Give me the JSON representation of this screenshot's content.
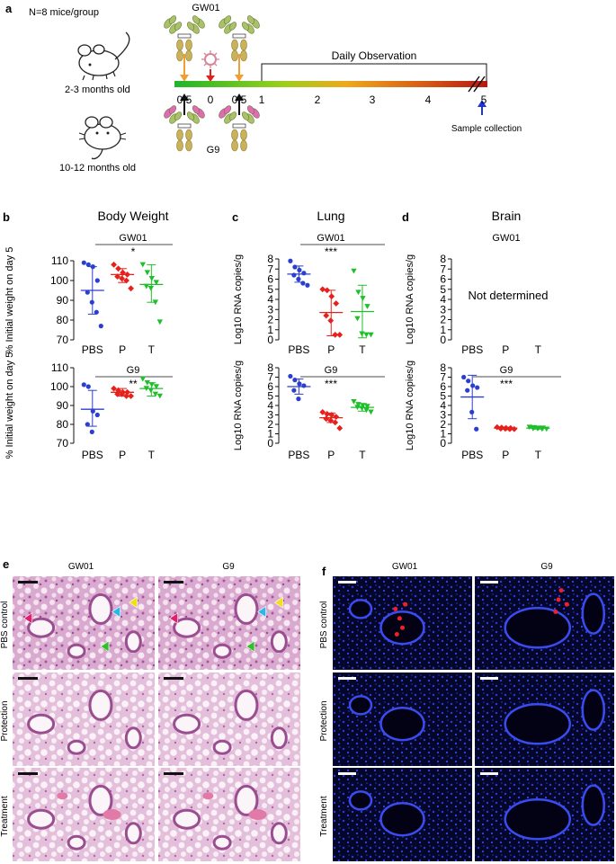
{
  "panel_a": {
    "letter": "a",
    "n_label": "N=8 mice/group",
    "young_age": "2-3 months old",
    "old_age": "10-12 months old",
    "top_antibody": "GW01",
    "bottom_antibody": "G9",
    "observation_label": "Daily Observation",
    "sample_label": "Sample collection",
    "timeline_ticks": [
      "0.5",
      "0",
      "0.5",
      "1",
      "2",
      "3",
      "4",
      "5"
    ]
  },
  "groups": [
    "PBS",
    "P",
    "T"
  ],
  "colors": {
    "pbs": "#2a3fd0",
    "p": "#e8201c",
    "t": "#1fbf2a"
  },
  "chart_data": [
    {
      "id": "b-top",
      "type": "scatter",
      "letter": "b",
      "title": "Body Weight",
      "subtitle": "GW01",
      "sig": "*",
      "ylabel": "% Initial weight on day 5",
      "ylim": [
        70,
        110
      ],
      "yticks": [
        70,
        80,
        90,
        100,
        110
      ],
      "categories": [
        "PBS",
        "P",
        "T"
      ],
      "series": [
        {
          "values": [
            109,
            108,
            107,
            100,
            94,
            89,
            84,
            77
          ],
          "mean": 95,
          "sd": [
            83,
            107
          ]
        },
        {
          "values": [
            108,
            106,
            104,
            103,
            102,
            101,
            100,
            96
          ],
          "mean": 103,
          "sd": [
            99,
            106
          ]
        },
        {
          "values": [
            108,
            104,
            101,
            99,
            97,
            96,
            89,
            79
          ],
          "mean": 98,
          "sd": [
            89,
            108
          ]
        }
      ]
    },
    {
      "id": "b-bottom",
      "type": "scatter",
      "letter": "",
      "title": "",
      "subtitle": "G9",
      "sig": "**",
      "ylabel": "% Initial weight on day 5",
      "ylim": [
        70,
        110
      ],
      "yticks": [
        70,
        80,
        90,
        100,
        110
      ],
      "categories": [
        "PBS",
        "P",
        "T"
      ],
      "series": [
        {
          "values": [
            101,
            100,
            87,
            85,
            80,
            76
          ],
          "mean": 88,
          "sd": [
            79,
            98
          ]
        },
        {
          "values": [
            99,
            98,
            97,
            97,
            96,
            96,
            95,
            95
          ],
          "mean": 97,
          "sd": [
            95,
            99
          ]
        },
        {
          "values": [
            104,
            102,
            101,
            100,
            99,
            98,
            96,
            95
          ],
          "mean": 99,
          "sd": [
            95,
            102
          ]
        }
      ]
    },
    {
      "id": "c-top",
      "type": "scatter",
      "letter": "c",
      "title": "Lung",
      "subtitle": "GW01",
      "sig": "***",
      "ylabel": "Log10 RNA copies/g",
      "ylim": [
        0,
        8
      ],
      "yticks": [
        0,
        1,
        2,
        3,
        4,
        5,
        6,
        7,
        8
      ],
      "categories": [
        "PBS",
        "P",
        "T"
      ],
      "series": [
        {
          "values": [
            7.8,
            7.2,
            6.9,
            6.6,
            6.4,
            6.0,
            5.6,
            5.4
          ],
          "mean": 6.5,
          "sd": [
            5.7,
            7.3
          ]
        },
        {
          "values": [
            5.0,
            4.9,
            4.3,
            3.6,
            2.4,
            1.9,
            0.5,
            0.5
          ],
          "mean": 2.7,
          "sd": [
            0.4,
            4.9
          ]
        },
        {
          "values": [
            6.8,
            4.7,
            4.1,
            3.3,
            2.1,
            0.6,
            0.5,
            0.5
          ],
          "mean": 2.8,
          "sd": [
            0.2,
            5.4
          ]
        }
      ]
    },
    {
      "id": "c-bottom",
      "type": "scatter",
      "letter": "",
      "title": "",
      "subtitle": "G9",
      "sig": "***",
      "ylabel": "Log10 RNA copies/g",
      "ylim": [
        0,
        8
      ],
      "yticks": [
        0,
        1,
        2,
        3,
        4,
        5,
        6,
        7,
        8
      ],
      "categories": [
        "PBS",
        "P",
        "T"
      ],
      "series": [
        {
          "values": [
            7.1,
            6.7,
            6.3,
            6.1,
            5.6,
            4.7
          ],
          "mean": 6.0,
          "sd": [
            5.2,
            6.8
          ]
        },
        {
          "values": [
            3.3,
            3.1,
            3.0,
            2.8,
            2.6,
            2.4,
            2.2,
            1.6
          ],
          "mean": 2.7,
          "sd": [
            2.2,
            3.2
          ]
        },
        {
          "values": [
            4.4,
            4.1,
            4.0,
            3.9,
            3.8,
            3.7,
            3.5,
            3.3
          ],
          "mean": 3.8,
          "sd": [
            3.4,
            4.2
          ]
        }
      ]
    },
    {
      "id": "d-top",
      "type": "scatter",
      "letter": "d",
      "title": "Brain",
      "subtitle": "GW01",
      "sig": "",
      "ylabel": "Log10 RNA copies/g",
      "ylim": [
        0,
        8
      ],
      "yticks": [
        0,
        1,
        2,
        3,
        4,
        5,
        6,
        7,
        8
      ],
      "categories": [
        "PBS",
        "P",
        "T"
      ],
      "note": "Not determined",
      "series": []
    },
    {
      "id": "d-bottom",
      "type": "scatter",
      "letter": "",
      "title": "",
      "subtitle": "G9",
      "sig": "***",
      "ylabel": "Log10 RNA copies/g",
      "ylim": [
        0,
        8
      ],
      "yticks": [
        0,
        1,
        2,
        3,
        4,
        5,
        6,
        7,
        8
      ],
      "categories": [
        "PBS",
        "P",
        "T"
      ],
      "series": [
        {
          "values": [
            7.0,
            6.6,
            6.1,
            5.9,
            5.6,
            3.3,
            1.5
          ],
          "mean": 4.9,
          "sd": [
            2.6,
            7.2
          ]
        },
        {
          "values": [
            1.7,
            1.65,
            1.6,
            1.6,
            1.55,
            1.55,
            1.5,
            1.5
          ],
          "mean": 1.6,
          "sd": [
            1.5,
            1.7
          ]
        },
        {
          "values": [
            1.7,
            1.65,
            1.6,
            1.6,
            1.55,
            1.55,
            1.5,
            1.5
          ],
          "mean": 1.6,
          "sd": [
            1.5,
            1.7
          ]
        }
      ]
    }
  ],
  "panel_e": {
    "letter": "e",
    "col1": "GW01",
    "col2": "G9",
    "rows": [
      "PBS control",
      "Protection",
      "Treatment"
    ]
  },
  "panel_f": {
    "letter": "f",
    "col1": "GW01",
    "col2": "G9",
    "rows": [
      "PBS control",
      "Protection",
      "Treatment"
    ]
  }
}
